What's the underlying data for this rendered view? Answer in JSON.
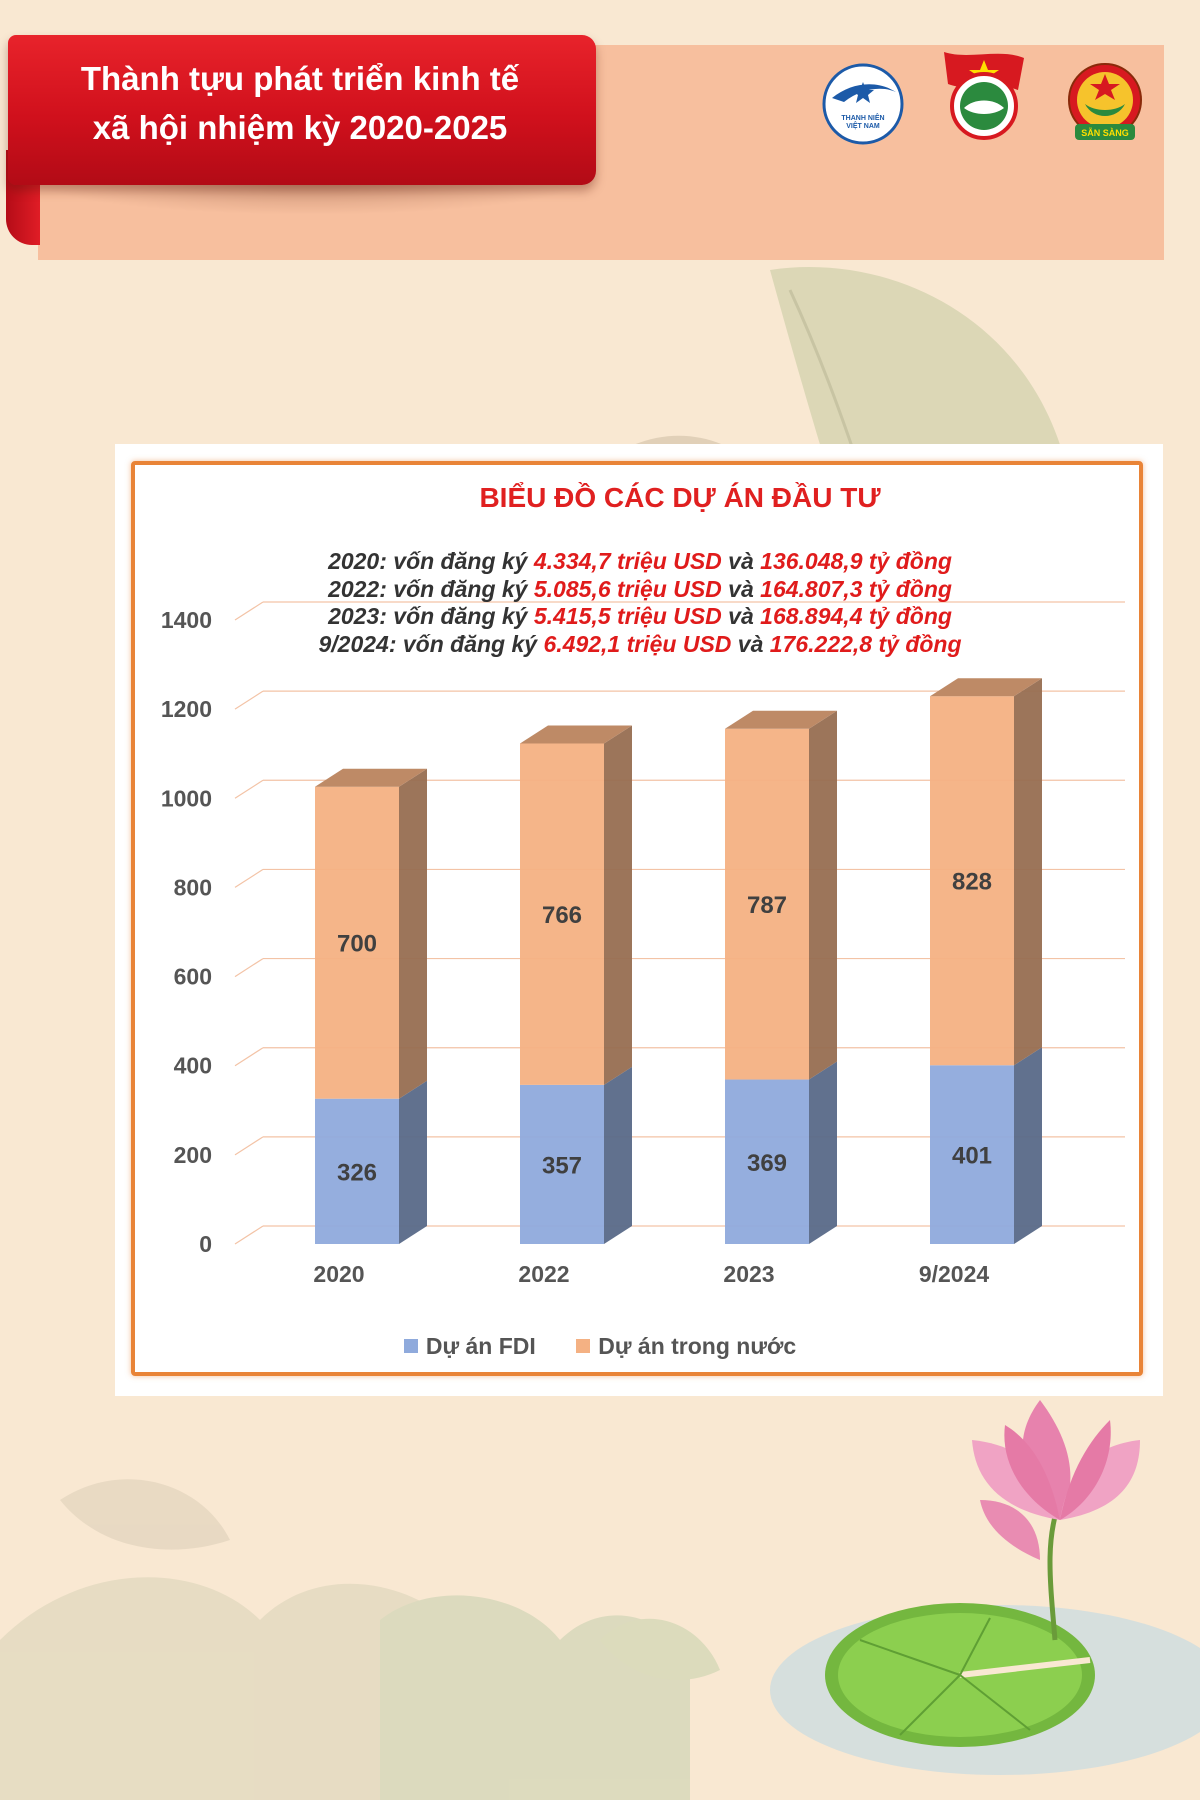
{
  "header": {
    "title_line1": "Thành tựu phát triển kinh tế",
    "title_line2": "xã hội nhiệm kỳ 2020-2025"
  },
  "logos": {
    "logo1_text_top": "THANH NIÊN",
    "logo1_text_bottom": "VIỆT NAM",
    "logo3_text": "SẴN SÀNG"
  },
  "notes": [
    {
      "prefix": "2020: vốn đăng ký ",
      "usd": "4.334,7 triệu USD",
      "mid": " và ",
      "vnd": "136.048,9 tỷ đồng"
    },
    {
      "prefix": "2022: vốn đăng ký ",
      "usd": "5.085,6 triệu USD",
      "mid": " và ",
      "vnd": "164.807,3 tỷ đồng"
    },
    {
      "prefix": "2023: vốn đăng ký ",
      "usd": "5.415,5 triệu USD",
      "mid": " và ",
      "vnd": "168.894,4 tỷ đồng"
    },
    {
      "prefix": "9/2024: vốn đăng ký ",
      "usd": "6.492,1 triệu USD",
      "mid": " và ",
      "vnd": "176.222,8 tỷ đồng"
    }
  ],
  "chart_data": {
    "type": "bar",
    "stacked": true,
    "title": "BIỂU ĐỒ CÁC DỰ ÁN ĐẦU TƯ",
    "categories": [
      "2020",
      "2022",
      "2023",
      "9/2024"
    ],
    "series": [
      {
        "name": "Dự án FDI",
        "values": [
          326,
          357,
          369,
          401
        ],
        "color": "#8faadc"
      },
      {
        "name": "Dự án trong nước",
        "values": [
          700,
          766,
          787,
          828
        ],
        "color": "#f4b183"
      }
    ],
    "ylim": [
      0,
      1400
    ],
    "yticks": [
      0,
      200,
      400,
      600,
      800,
      1000,
      1200,
      1400
    ],
    "grid": true,
    "legend_position": "bottom"
  },
  "colors": {
    "accent_red": "#e02020",
    "frame_orange": "#e98437",
    "fdi": "#8faadc",
    "domestic": "#f4b183"
  }
}
